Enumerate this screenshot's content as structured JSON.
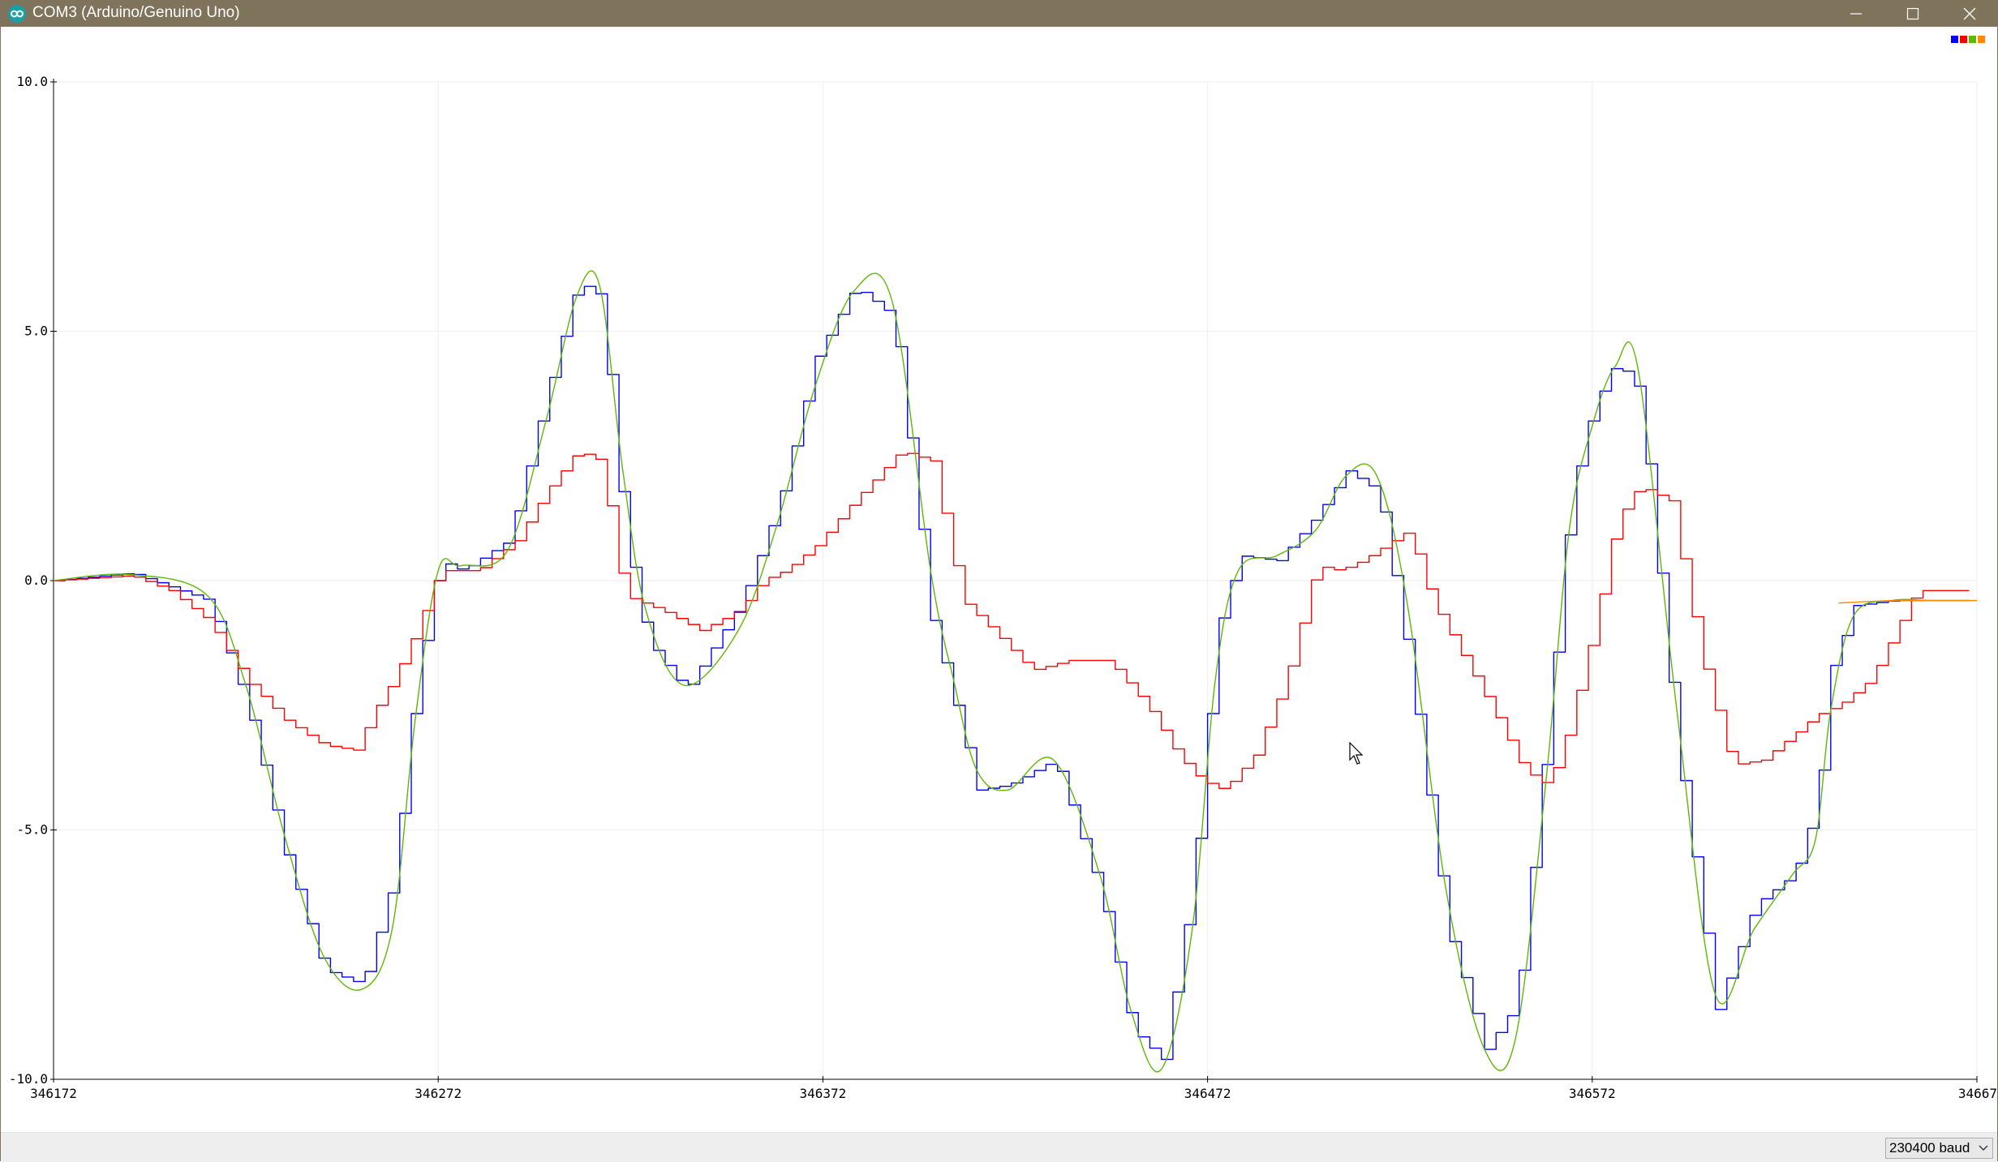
{
  "window": {
    "title": "COM3 (Arduino/Genuino Uno)",
    "accent_color": "#7f735c"
  },
  "icons": [
    "arduino-logo-icon",
    "minimize-icon",
    "maximize-icon",
    "close-icon",
    "chevron-down-icon",
    "mouse-cursor-icon"
  ],
  "statusbar": {
    "baud_label": "230400 baud"
  },
  "chart_data": {
    "type": "line",
    "title": "",
    "xlabel": "",
    "ylabel": "",
    "xlim": [
      346172,
      346672
    ],
    "ylim": [
      -10,
      10
    ],
    "x_ticks": [
      "346172",
      "346272",
      "346372",
      "346472",
      "346572",
      "34667"
    ],
    "y_ticks": [
      "10.0",
      "5.0",
      "0.0",
      "-5.0",
      "-10.0"
    ],
    "grid": true,
    "legend": "top-right color squares only",
    "series": [
      {
        "color": "#0000ff",
        "style": "step",
        "x": [
          346172,
          346192,
          346212,
          346222,
          346232,
          346242,
          346252,
          346260,
          346266,
          346272,
          346278,
          346290,
          346300,
          346308,
          346314,
          346320,
          346326,
          346336,
          346350,
          346360,
          346370,
          346380,
          346390,
          346400,
          346406,
          346412,
          346420,
          346432,
          346444,
          346452,
          346460,
          346468,
          346474,
          346480,
          346490,
          346500,
          346508,
          346516,
          346524,
          346534,
          346544,
          346552,
          346560,
          346566,
          346572,
          346578,
          346584,
          346594,
          346604,
          346614,
          346624,
          346630,
          346634,
          346640,
          346650,
          346660,
          346672
        ],
        "y": [
          0.0,
          0.15,
          -0.4,
          -2.5,
          -5.5,
          -7.8,
          -8.1,
          -6.0,
          -2.0,
          0.4,
          0.2,
          0.8,
          3.8,
          6.0,
          5.7,
          1.0,
          -1.2,
          -2.2,
          -0.5,
          1.5,
          4.5,
          5.9,
          5.3,
          -0.8,
          -2.5,
          -4.2,
          -4.1,
          -3.6,
          -6.3,
          -9.0,
          -9.6,
          -6.0,
          -1.0,
          0.5,
          0.4,
          1.3,
          2.2,
          1.8,
          -1.6,
          -7.0,
          -9.4,
          -8.5,
          -3.0,
          1.7,
          3.5,
          4.4,
          3.8,
          -3.5,
          -8.6,
          -6.5,
          -5.9,
          -4.5,
          -1.7,
          -0.5,
          -0.4,
          -0.4,
          -0.4
        ]
      },
      {
        "color": "#ff0000",
        "style": "step",
        "x": [
          346172,
          346192,
          346202,
          346212,
          346222,
          346232,
          346242,
          346250,
          346256,
          346260,
          346266,
          346272,
          346282,
          346292,
          346300,
          346308,
          346314,
          346320,
          346330,
          346340,
          346350,
          346356,
          346362,
          346370,
          346380,
          346392,
          346400,
          346408,
          346416,
          346426,
          346436,
          346446,
          346456,
          346464,
          346470,
          346476,
          346484,
          346492,
          346500,
          346506,
          346512,
          346518,
          346524,
          346530,
          346538,
          346546,
          346554,
          346560,
          346564,
          346572,
          346578,
          346584,
          346592,
          346600,
          346608,
          346616,
          346624,
          346630,
          346636,
          346644,
          346656,
          346672
        ],
        "y": [
          0.0,
          0.1,
          -0.2,
          -0.8,
          -2.0,
          -2.8,
          -3.3,
          -3.4,
          -2.5,
          -2.0,
          -1.0,
          0.2,
          0.2,
          0.8,
          1.8,
          2.6,
          2.4,
          -0.3,
          -0.6,
          -1.0,
          -0.6,
          0.0,
          0.2,
          0.7,
          1.6,
          2.6,
          2.4,
          -0.4,
          -1.0,
          -1.8,
          -1.6,
          -1.6,
          -2.5,
          -3.5,
          -4.0,
          -4.2,
          -3.5,
          -2.0,
          0.3,
          0.2,
          0.4,
          0.7,
          1.0,
          -0.4,
          -1.5,
          -2.6,
          -3.8,
          -4.1,
          -3.4,
          -1.0,
          1.2,
          1.9,
          1.6,
          -1.5,
          -3.7,
          -3.6,
          -3.1,
          -2.7,
          -2.5,
          -2.0,
          -0.2,
          -0.2
        ]
      },
      {
        "color": "#5fb800",
        "style": "smooth",
        "x": [
          346172,
          346192,
          346212,
          346222,
          346232,
          346242,
          346252,
          346260,
          346266,
          346272,
          346278,
          346290,
          346300,
          346308,
          346314,
          346320,
          346326,
          346336,
          346350,
          346360,
          346370,
          346380,
          346390,
          346400,
          346406,
          346412,
          346420,
          346432,
          346444,
          346452,
          346460,
          346468,
          346474,
          346480,
          346490,
          346500,
          346508,
          346516,
          346524,
          346534,
          346544,
          346552,
          346560,
          346566,
          346572,
          346578,
          346584,
          346594,
          346604,
          346614,
          346624,
          346630,
          346634,
          346640,
          346650,
          346660,
          346672
        ],
        "y": [
          0.0,
          0.12,
          -0.3,
          -2.1,
          -5.1,
          -7.5,
          -8.2,
          -7.0,
          -2.8,
          0.2,
          0.3,
          0.6,
          3.2,
          5.7,
          5.9,
          2.2,
          -0.6,
          -2.1,
          -1.0,
          1.1,
          3.9,
          5.8,
          5.6,
          0.2,
          -2.0,
          -3.8,
          -4.2,
          -3.6,
          -5.9,
          -8.6,
          -9.8,
          -7.0,
          -2.0,
          0.2,
          0.5,
          1.0,
          2.1,
          2.1,
          -0.5,
          -6.2,
          -9.4,
          -9.2,
          -4.0,
          1.0,
          3.1,
          4.3,
          4.2,
          -2.6,
          -8.3,
          -7.0,
          -5.9,
          -5.2,
          -2.6,
          -0.7,
          -0.4,
          -0.4,
          -0.4
        ]
      },
      {
        "color": "#ff8c00",
        "style": "smooth",
        "x": [
          346636,
          346650,
          346660,
          346672
        ],
        "y": [
          -0.45,
          -0.4,
          -0.4,
          -0.4
        ]
      }
    ]
  }
}
